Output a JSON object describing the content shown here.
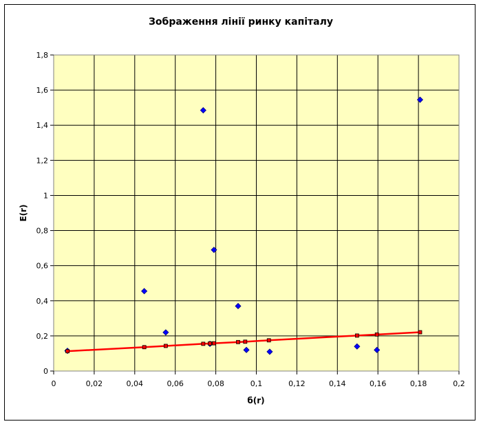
{
  "chart_data": {
    "type": "scatter",
    "title": "Зображення лінії ринку капіталу",
    "xlabel": "б(r)",
    "ylabel": "E(r)",
    "xlim": [
      0,
      0.2
    ],
    "ylim": [
      0,
      1.8
    ],
    "x_ticks": [
      "0",
      "0,02",
      "0,04",
      "0,06",
      "0,08",
      "0,1",
      "0,12",
      "0,14",
      "0,16",
      "0,18",
      "0,2"
    ],
    "y_ticks": [
      "0",
      "0,2",
      "0,4",
      "0,6",
      "0,8",
      "1",
      "1,2",
      "1,4",
      "1,6",
      "1,8"
    ],
    "grid": true,
    "plot_background": "#ffffc0",
    "series": [
      {
        "marker": "diamond",
        "color": "#0000ff",
        "points": [
          [
            0.0068,
            0.115
          ],
          [
            0.0447,
            0.455
          ],
          [
            0.0553,
            0.22
          ],
          [
            0.0738,
            1.485
          ],
          [
            0.0771,
            0.155
          ],
          [
            0.0791,
            0.69
          ],
          [
            0.091,
            0.37
          ],
          [
            0.0951,
            0.12
          ],
          [
            0.1066,
            0.11
          ],
          [
            0.1497,
            0.14
          ],
          [
            0.1595,
            0.12
          ],
          [
            0.1808,
            1.545
          ]
        ]
      },
      {
        "marker": "square",
        "color": "#ff0000",
        "line": true,
        "points": [
          [
            0.0068,
            0.113
          ],
          [
            0.0447,
            0.136
          ],
          [
            0.0553,
            0.143
          ],
          [
            0.0738,
            0.155
          ],
          [
            0.0771,
            0.157
          ],
          [
            0.0791,
            0.158
          ],
          [
            0.091,
            0.165
          ],
          [
            0.0945,
            0.167
          ],
          [
            0.1062,
            0.175
          ],
          [
            0.1497,
            0.202
          ],
          [
            0.1595,
            0.208
          ],
          [
            0.1808,
            0.221
          ]
        ]
      }
    ]
  }
}
